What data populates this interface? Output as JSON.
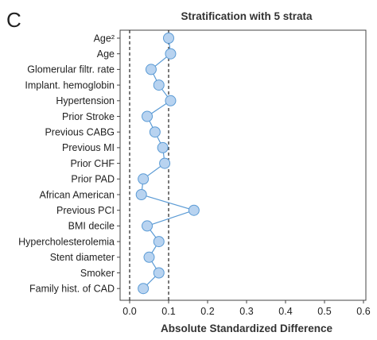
{
  "panel_label": "C",
  "chart_data": {
    "type": "scatter",
    "title": "Stratification with 5 strata",
    "xlabel": "Absolute Standardized Difference",
    "ylabel": "",
    "xlim": [
      0.0,
      0.6
    ],
    "x_ticks": [
      "0.0",
      "0.1",
      "0.2",
      "0.3",
      "0.4",
      "0.5",
      "0.6"
    ],
    "reference_lines": [
      0.0,
      0.1
    ],
    "grid": false,
    "marker_color": "#b8d3f0",
    "marker_edge_color": "#5b9bd5",
    "line_color": "#5b9bd5",
    "categories": [
      "Age²",
      "Age",
      "Glomerular filtr. rate",
      "Implant. hemoglobin",
      "Hypertension",
      "Prior Stroke",
      "Previous CABG",
      "Previous MI",
      "Prior CHF",
      "Prior PAD",
      "African American",
      "Previous PCI",
      "BMI decile",
      "Hypercholesterolemia",
      "Stent diameter",
      "Smoker",
      "Family hist. of CAD"
    ],
    "values": [
      0.1,
      0.105,
      0.055,
      0.075,
      0.105,
      0.045,
      0.065,
      0.085,
      0.09,
      0.035,
      0.03,
      0.165,
      0.045,
      0.075,
      0.05,
      0.075,
      0.035
    ]
  }
}
